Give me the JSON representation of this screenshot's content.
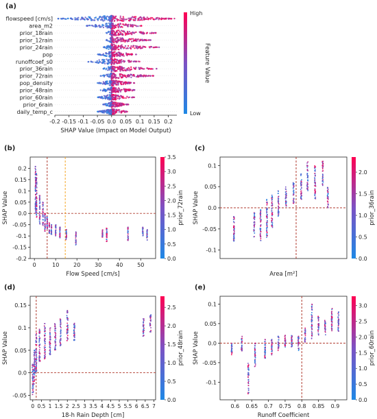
{
  "chart_data": [
    {
      "panel": "(a)",
      "type": "scatter",
      "subtype": "shap-beeswarm",
      "xlabel": "SHAP Value (Impact on Model Output)",
      "xlim": [
        -0.2,
        0.23
      ],
      "xticks": [
        "-0.2",
        "-0.15",
        "-0.1",
        "-0.05",
        "0.0",
        "0.05",
        "0.1",
        "0.15",
        "0.2"
      ],
      "features": [
        {
          "name": "flowspeed [cm/s]",
          "range": [
            -0.19,
            0.23
          ]
        },
        {
          "name": "area_m2",
          "range": [
            -0.09,
            0.11
          ]
        },
        {
          "name": "prior_18rain",
          "range": [
            -0.02,
            0.16
          ]
        },
        {
          "name": "prior_12rain",
          "range": [
            -0.02,
            0.14
          ]
        },
        {
          "name": "prior_24rain",
          "range": [
            -0.03,
            0.17
          ]
        },
        {
          "name": "pop",
          "range": [
            -0.05,
            0.09
          ]
        },
        {
          "name": "runoffcoef_s0",
          "range": [
            -0.09,
            0.1
          ]
        },
        {
          "name": "prior_36rain",
          "range": [
            -0.03,
            0.16
          ]
        },
        {
          "name": "prior_72rain",
          "range": [
            -0.04,
            0.15
          ]
        },
        {
          "name": "pop_density",
          "range": [
            -0.05,
            0.08
          ]
        },
        {
          "name": "prior_48rain",
          "range": [
            -0.04,
            0.09
          ]
        },
        {
          "name": "prior_60rain",
          "range": [
            -0.05,
            0.08
          ]
        },
        {
          "name": "prior_6rain",
          "range": [
            -0.03,
            0.06
          ]
        },
        {
          "name": "daily_temp_c",
          "range": [
            -0.05,
            0.06
          ]
        }
      ],
      "colorbar": {
        "label": "Feature Value",
        "high": "High",
        "low": "Low"
      }
    },
    {
      "panel": "(b)",
      "type": "scatter",
      "subtype": "shap-dependence",
      "xlabel": "Flow Speed [cm/s]",
      "ylabel": "SHAP Value",
      "xlim": [
        -2,
        57
      ],
      "ylim": [
        -0.2,
        0.25
      ],
      "xticks": [
        "0",
        "10",
        "20",
        "30",
        "40",
        "50"
      ],
      "yticks": [
        "-0.2",
        "-0.15",
        "-0.1",
        "-0.05",
        "0.0",
        "0.05",
        "0.1",
        "0.15",
        "0.2"
      ],
      "ref_lines": {
        "vertical": [
          6,
          14.5
        ],
        "horizontal": [
          0
        ]
      },
      "points": [
        {
          "x": 0.5,
          "y_range": [
            0.0,
            0.21
          ]
        },
        {
          "x": 1.0,
          "y_range": [
            -0.02,
            0.18
          ]
        },
        {
          "x": 2.5,
          "y_range": [
            -0.05,
            0.08
          ]
        },
        {
          "x": 4.0,
          "y_range": [
            -0.06,
            0.05
          ]
        },
        {
          "x": 5.0,
          "y_range": [
            -0.08,
            0.0
          ]
        },
        {
          "x": 6.0,
          "y_range": [
            -0.07,
            -0.01
          ]
        },
        {
          "x": 7.0,
          "y_range": [
            -0.09,
            -0.04
          ]
        },
        {
          "x": 8.0,
          "y_range": [
            -0.1,
            -0.05
          ]
        },
        {
          "x": 10.0,
          "y_range": [
            -0.1,
            -0.05
          ]
        },
        {
          "x": 12.0,
          "y_range": [
            -0.11,
            -0.06
          ]
        },
        {
          "x": 15.0,
          "y_range": [
            -0.12,
            -0.07
          ]
        },
        {
          "x": 19.5,
          "y_range": [
            -0.14,
            -0.08
          ]
        },
        {
          "x": 32.0,
          "y_range": [
            -0.11,
            -0.07
          ]
        },
        {
          "x": 34.0,
          "y_range": [
            -0.13,
            -0.06
          ]
        },
        {
          "x": 44.0,
          "y_range": [
            -0.12,
            -0.06
          ]
        },
        {
          "x": 51.0,
          "y_range": [
            -0.1,
            -0.06
          ]
        },
        {
          "x": 53.0,
          "y_range": [
            -0.12,
            -0.07
          ]
        }
      ],
      "colorbar": {
        "label": "prior_72rain",
        "ticks": [
          "0.0",
          "0.5",
          "1.0",
          "1.5",
          "2.0",
          "2.5",
          "3.0",
          "3.5"
        ]
      }
    },
    {
      "panel": "(c)",
      "type": "scatter",
      "subtype": "shap-dependence",
      "xlabel": "Area [m²]",
      "ylabel": "SHAP Value",
      "xscale": "log",
      "xlim": [
        3,
        8
      ],
      "ylim": [
        -0.12,
        0.12
      ],
      "xticks": [
        "10³",
        "10⁴",
        "10⁵",
        "10⁶",
        "10⁷",
        "10⁸"
      ],
      "yticks": [
        "-0.1",
        "-0.05",
        "0.0",
        "0.05",
        "0.1"
      ],
      "ref_lines": {
        "vertical": [
          6
        ],
        "horizontal": [
          0
        ]
      },
      "points": [
        {
          "x": 3.55,
          "y_range": [
            -0.08,
            -0.02
          ]
        },
        {
          "x": 4.35,
          "y_range": [
            -0.07,
            -0.01
          ]
        },
        {
          "x": 4.6,
          "y_range": [
            -0.08,
            0.0
          ]
        },
        {
          "x": 4.85,
          "y_range": [
            -0.07,
            0.02
          ]
        },
        {
          "x": 5.05,
          "y_range": [
            -0.05,
            0.03
          ]
        },
        {
          "x": 5.3,
          "y_range": [
            -0.02,
            0.04
          ]
        },
        {
          "x": 5.6,
          "y_range": [
            0.0,
            0.05
          ]
        },
        {
          "x": 5.9,
          "y_range": [
            0.01,
            0.06
          ]
        },
        {
          "x": 6.2,
          "y_range": [
            0.02,
            0.08
          ]
        },
        {
          "x": 6.45,
          "y_range": [
            0.04,
            0.11
          ]
        },
        {
          "x": 6.75,
          "y_range": [
            0.02,
            0.1
          ]
        },
        {
          "x": 7.05,
          "y_range": [
            0.05,
            0.11
          ]
        },
        {
          "x": 7.25,
          "y_range": [
            0.0,
            0.05
          ]
        }
      ],
      "colorbar": {
        "label": "prior_36rain",
        "ticks": [
          "0.0",
          "0.5",
          "1.0",
          "1.5",
          "2.0"
        ]
      }
    },
    {
      "panel": "(d)",
      "type": "scatter",
      "subtype": "shap-dependence",
      "xlabel": "18-h Rain Depth [cm]",
      "ylabel": "SHAP Value",
      "xlim": [
        -0.15,
        7.1
      ],
      "ylim": [
        -0.06,
        0.17
      ],
      "xticks": [
        "0",
        "0.5",
        "1",
        "1.5",
        "2",
        "2.5",
        "3",
        "3.5",
        "4",
        "4.5",
        "5",
        "5.5",
        "6",
        "6.5",
        "7"
      ],
      "yticks": [
        "-0.05",
        "0.0",
        "0.05",
        "0.1",
        "0.15"
      ],
      "ref_lines": {
        "vertical": [
          0.2
        ],
        "horizontal": [
          0
        ]
      },
      "points": [
        {
          "x": 0.0,
          "y_range": [
            -0.05,
            0.02
          ]
        },
        {
          "x": 0.1,
          "y_range": [
            -0.03,
            0.05
          ]
        },
        {
          "x": 0.2,
          "y_range": [
            0.0,
            0.09
          ]
        },
        {
          "x": 0.4,
          "y_range": [
            0.02,
            0.1
          ]
        },
        {
          "x": 0.7,
          "y_range": [
            0.03,
            0.11
          ]
        },
        {
          "x": 1.0,
          "y_range": [
            0.04,
            0.1
          ]
        },
        {
          "x": 1.3,
          "y_range": [
            0.05,
            0.11
          ]
        },
        {
          "x": 1.6,
          "y_range": [
            0.06,
            0.12
          ]
        },
        {
          "x": 2.0,
          "y_range": [
            0.07,
            0.14
          ]
        },
        {
          "x": 2.4,
          "y_range": [
            0.07,
            0.11
          ]
        },
        {
          "x": 6.4,
          "y_range": [
            0.08,
            0.12
          ]
        },
        {
          "x": 6.8,
          "y_range": [
            0.09,
            0.13
          ]
        }
      ],
      "colorbar": {
        "label": "prior_48rain",
        "ticks": [
          "0.0",
          "0.5",
          "1.0",
          "1.5",
          "2.0",
          "2.5"
        ]
      }
    },
    {
      "panel": "(e)",
      "type": "scatter",
      "subtype": "shap-dependence",
      "xlabel": "Runoff Coefficient",
      "ylabel": "SHAP Value",
      "xlim": [
        0.555,
        0.935
      ],
      "ylim": [
        -0.145,
        0.12
      ],
      "xticks": [
        "0.6",
        "0.65",
        "0.7",
        "0.75",
        "0.8",
        "0.85",
        "0.9"
      ],
      "yticks": [
        "-0.1",
        "-0.05",
        "0.0",
        "0.05",
        "0.1"
      ],
      "ref_lines": {
        "vertical": [
          0.8
        ],
        "horizontal": [
          0
        ]
      },
      "points": [
        {
          "x": 0.59,
          "y_range": [
            -0.03,
            0.0
          ]
        },
        {
          "x": 0.62,
          "y_range": [
            -0.02,
            0.02
          ]
        },
        {
          "x": 0.64,
          "y_range": [
            -0.13,
            -0.05
          ]
        },
        {
          "x": 0.66,
          "y_range": [
            -0.06,
            0.0
          ]
        },
        {
          "x": 0.69,
          "y_range": [
            -0.04,
            0.01
          ]
        },
        {
          "x": 0.71,
          "y_range": [
            -0.03,
            0.01
          ]
        },
        {
          "x": 0.73,
          "y_range": [
            -0.02,
            0.02
          ]
        },
        {
          "x": 0.75,
          "y_range": [
            -0.01,
            0.02
          ]
        },
        {
          "x": 0.77,
          "y_range": [
            -0.01,
            0.02
          ]
        },
        {
          "x": 0.79,
          "y_range": [
            -0.02,
            0.02
          ]
        },
        {
          "x": 0.81,
          "y_range": [
            0.0,
            0.04
          ]
        },
        {
          "x": 0.83,
          "y_range": [
            0.01,
            0.1
          ]
        },
        {
          "x": 0.85,
          "y_range": [
            0.02,
            0.07
          ]
        },
        {
          "x": 0.87,
          "y_range": [
            0.02,
            0.06
          ]
        },
        {
          "x": 0.89,
          "y_range": [
            0.03,
            0.09
          ]
        },
        {
          "x": 0.91,
          "y_range": [
            0.03,
            0.08
          ]
        }
      ],
      "colorbar": {
        "label": "prior_60rain",
        "ticks": [
          "0.0",
          "0.5",
          "1.0",
          "1.5",
          "2.0",
          "2.5",
          "3.0"
        ]
      }
    }
  ],
  "colors": {
    "low": "#1e88e5",
    "high": "#ff0052",
    "ref_dark": "#b03a2e",
    "ref_orange": "#f5a623"
  }
}
